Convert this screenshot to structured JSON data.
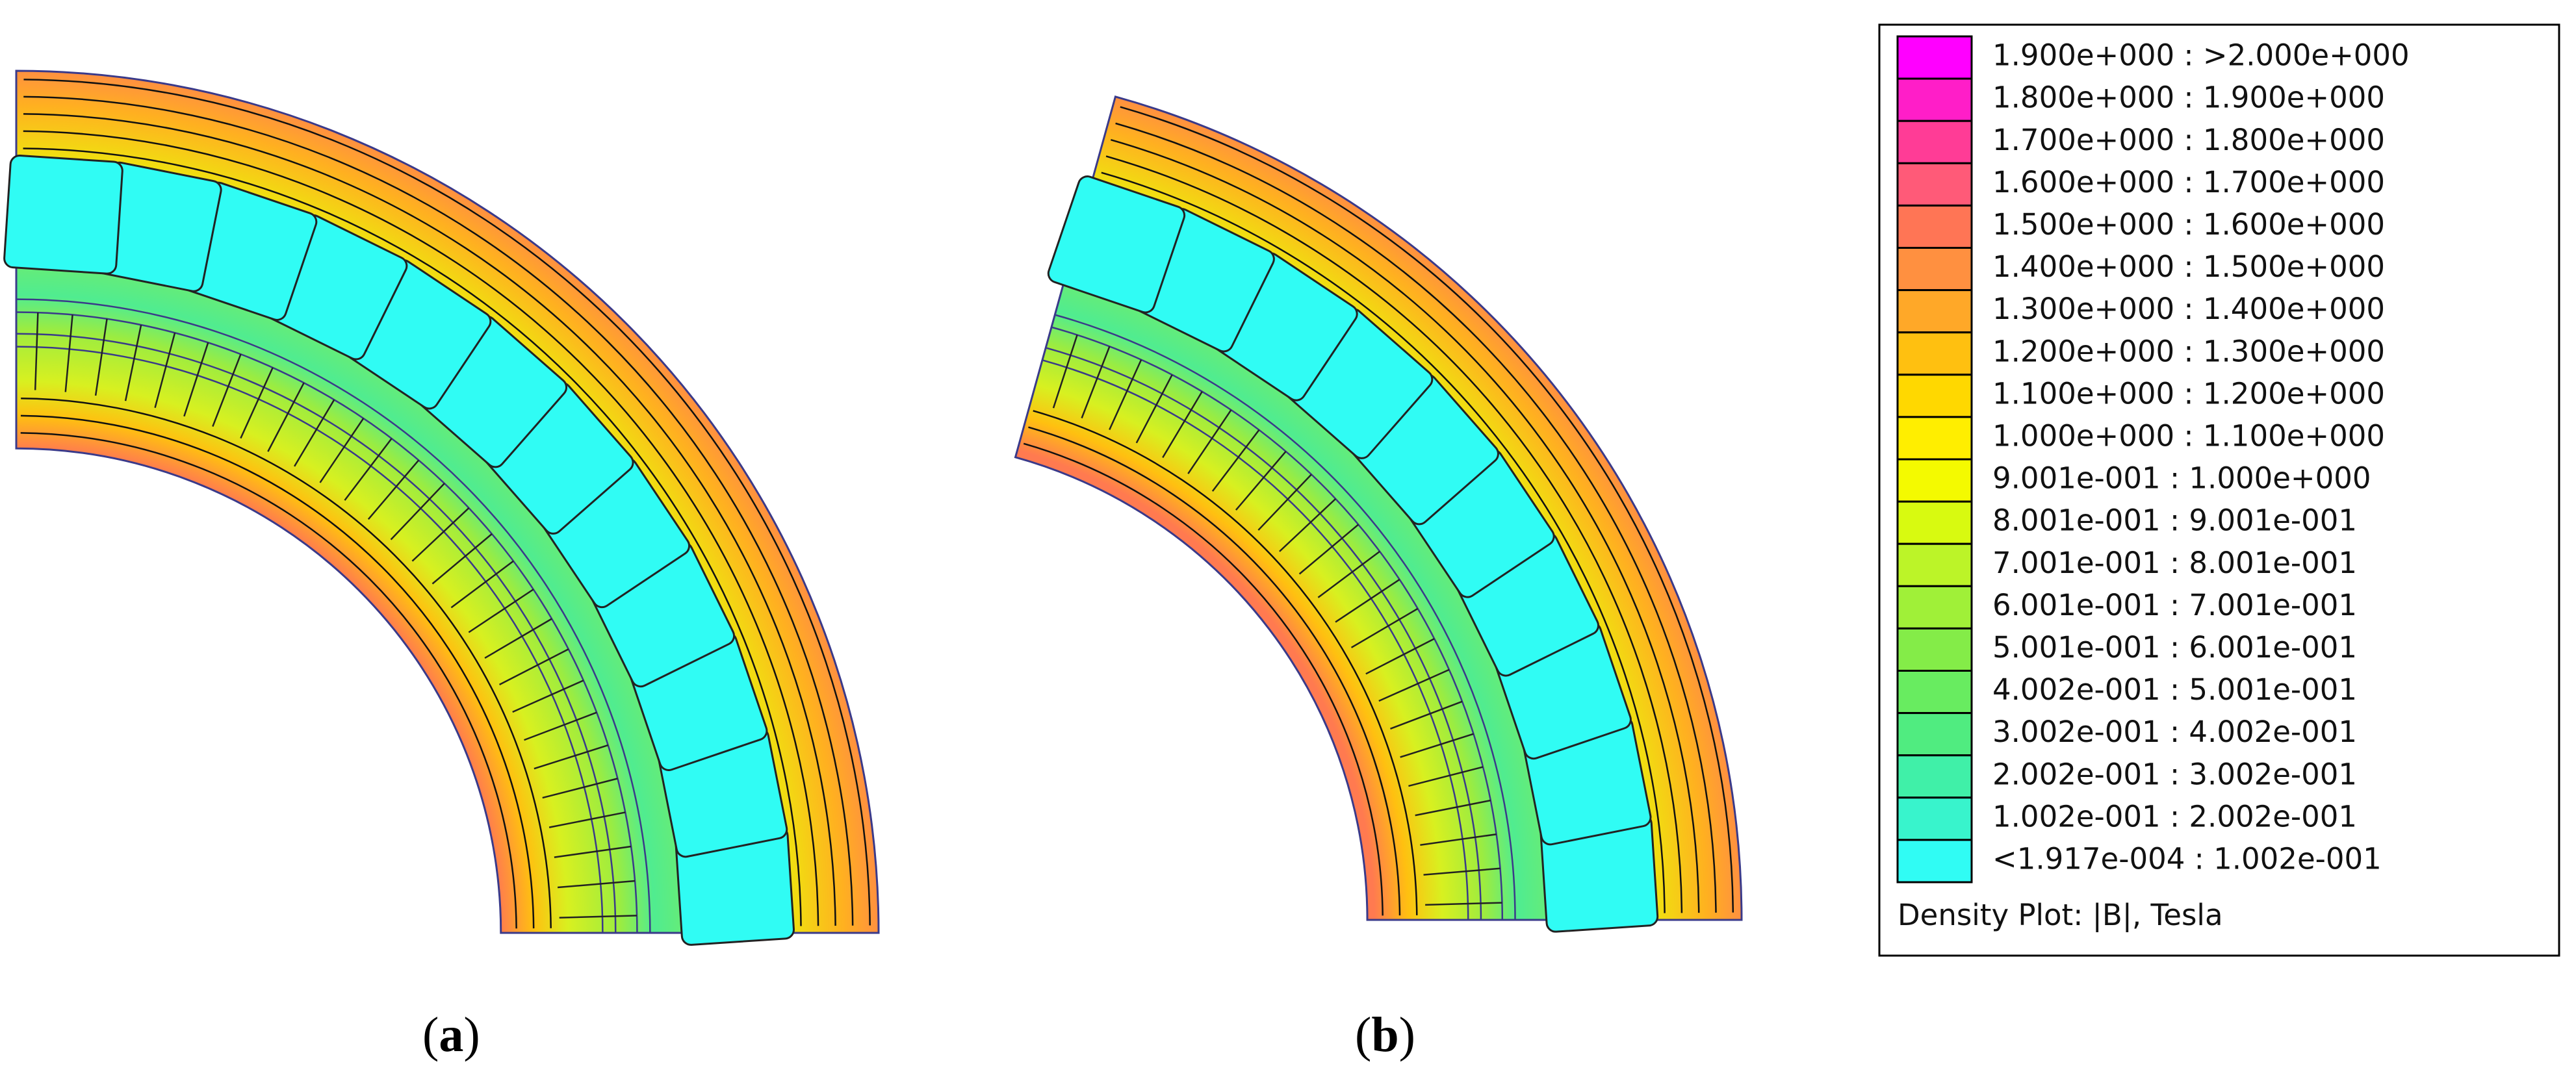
{
  "figure": {
    "panels": [
      {
        "caption": {
          "open": "(",
          "letter": "a",
          "close": ")"
        }
      },
      {
        "caption": {
          "open": "(",
          "letter": "b",
          "close": ")"
        }
      }
    ],
    "legend": {
      "entries": [
        {
          "label": "1.900e+000 : >2.000e+000",
          "color": "#ff00ff"
        },
        {
          "label": "1.800e+000 : 1.900e+000",
          "color": "#ff1ec8"
        },
        {
          "label": "1.700e+000 : 1.800e+000",
          "color": "#ff3c96"
        },
        {
          "label": "1.600e+000 : 1.700e+000",
          "color": "#ff5a78"
        },
        {
          "label": "1.500e+000 : 1.600e+000",
          "color": "#ff7555"
        },
        {
          "label": "1.400e+000 : 1.500e+000",
          "color": "#ff9040"
        },
        {
          "label": "1.300e+000 : 1.400e+000",
          "color": "#ffa828"
        },
        {
          "label": "1.200e+000 : 1.300e+000",
          "color": "#ffc010"
        },
        {
          "label": "1.100e+000 : 1.200e+000",
          "color": "#ffd800"
        },
        {
          "label": "1.000e+000 : 1.100e+000",
          "color": "#ffee00"
        },
        {
          "label": "9.001e-001 : 1.000e+000",
          "color": "#f4fa00"
        },
        {
          "label": "8.001e-001 : 9.001e-001",
          "color": "#d8fa10"
        },
        {
          "label": "7.001e-001 : 8.001e-001",
          "color": "#bcf428"
        },
        {
          "label": "6.001e-001 : 7.001e-001",
          "color": "#a0f038"
        },
        {
          "label": "5.001e-001 : 6.001e-001",
          "color": "#84ec48"
        },
        {
          "label": "4.002e-001 : 5.001e-001",
          "color": "#68ec60"
        },
        {
          "label": "3.002e-001 : 4.002e-001",
          "color": "#50ec80"
        },
        {
          "label": "2.002e-001 : 3.002e-001",
          "color": "#40f0a8"
        },
        {
          "label": "1.002e-001 : 2.002e-001",
          "color": "#38f4cc"
        },
        {
          "label": "<1.917e-004 : 1.002e-001",
          "color": "#30fcf4"
        }
      ],
      "title": "Density Plot: |B|, Tesla"
    }
  }
}
